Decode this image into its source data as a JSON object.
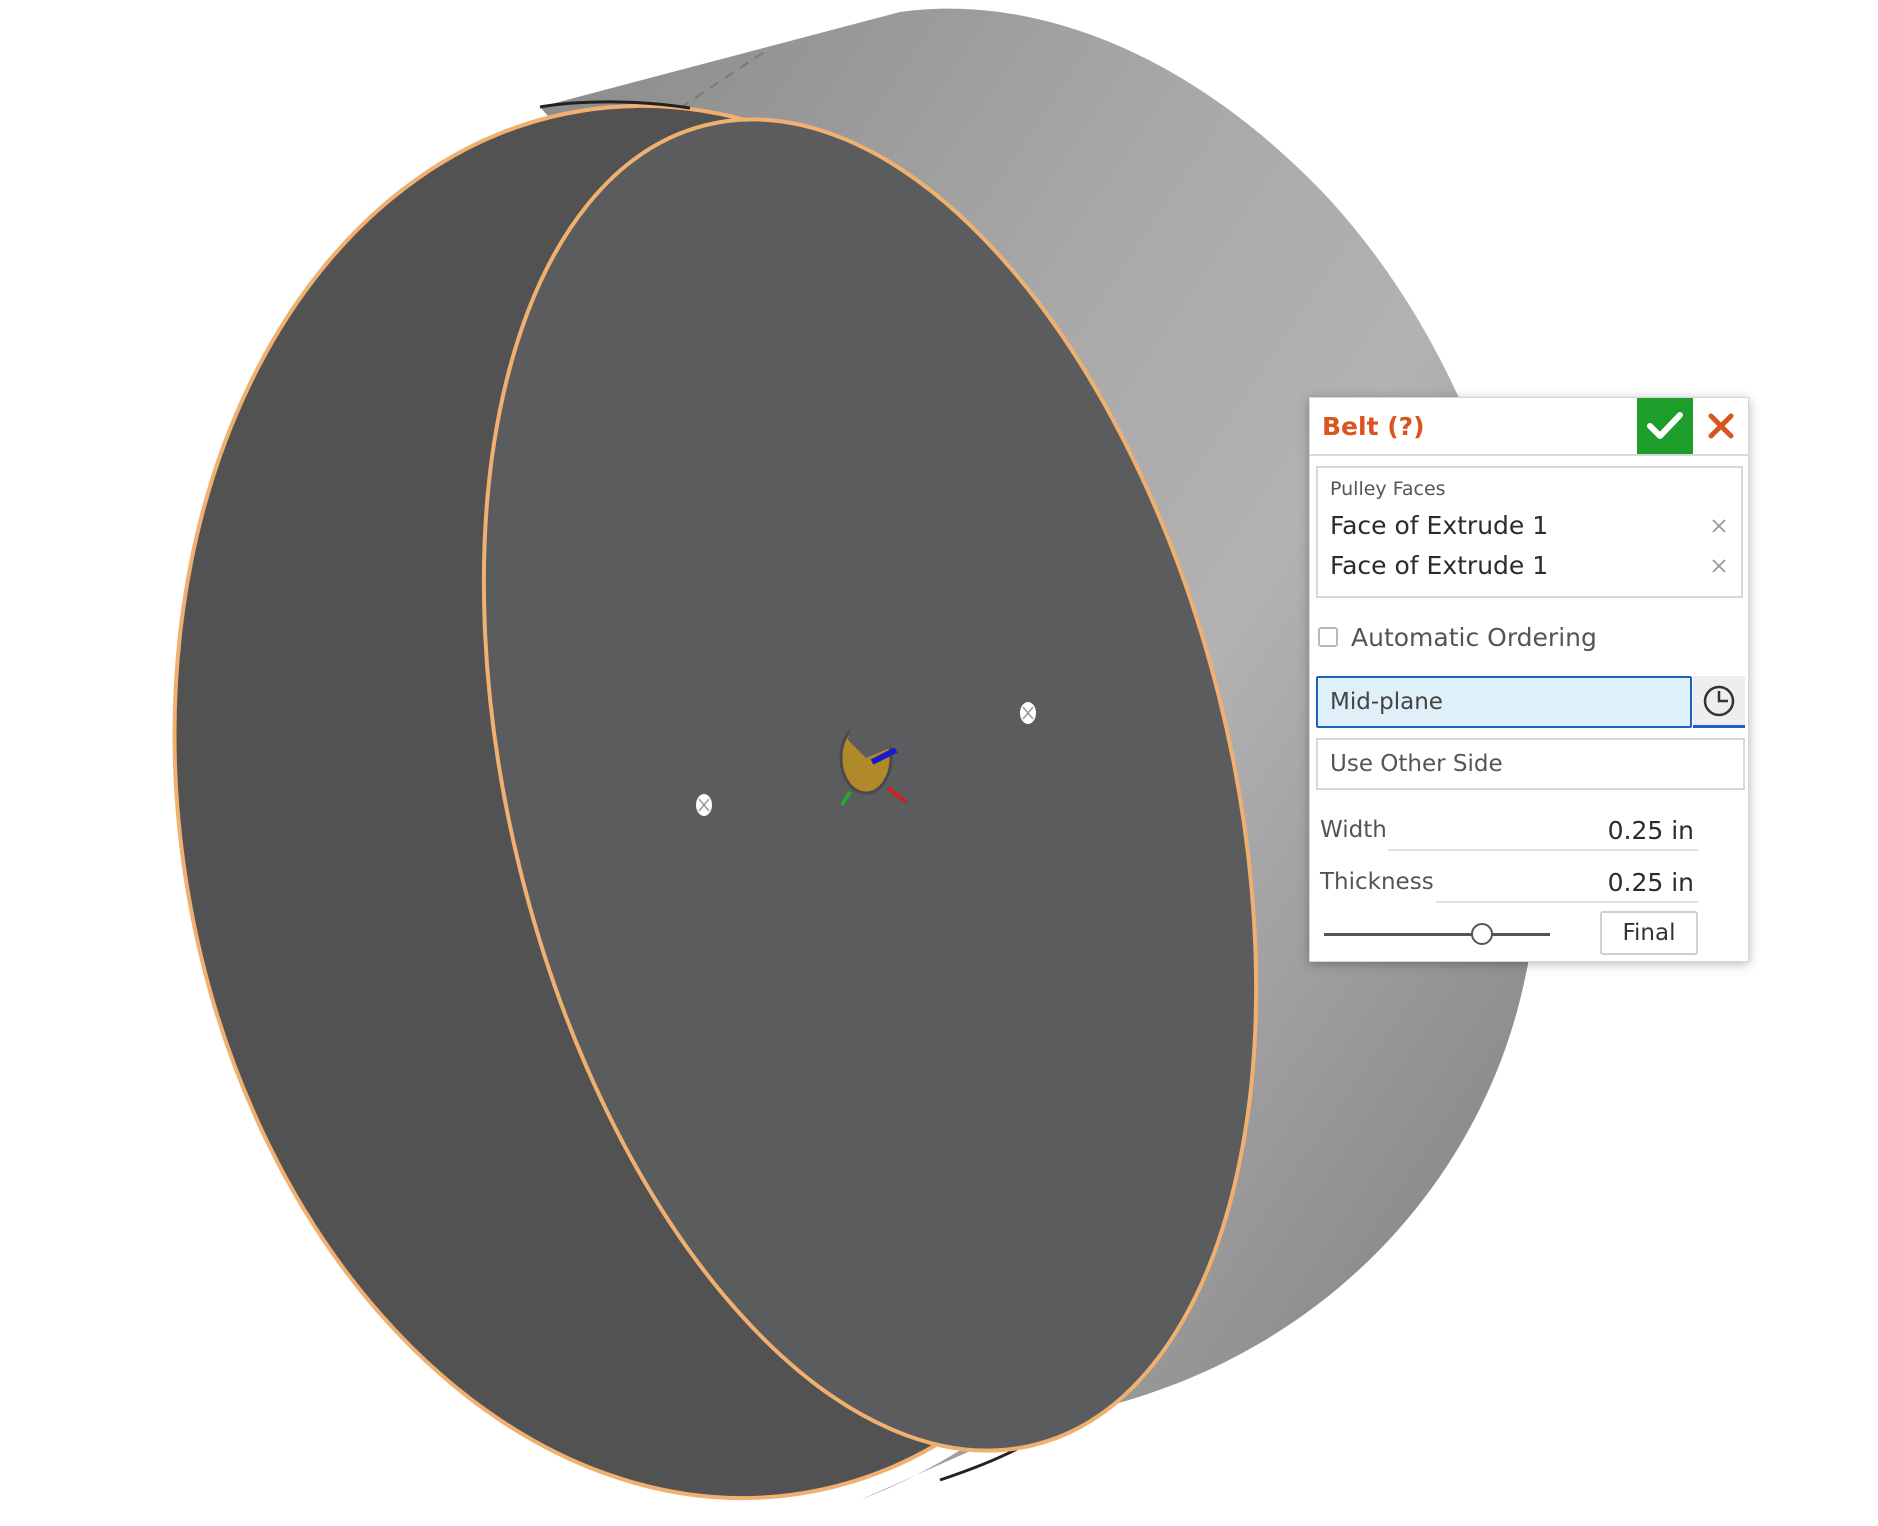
{
  "dialog": {
    "title": "Belt (?)",
    "accept_icon": "checkmark-icon",
    "cancel_icon": "close-icon",
    "pulley_faces": {
      "label": "Pulley Faces",
      "items": [
        "Face of Extrude 1",
        "Face of Extrude 1"
      ]
    },
    "automatic_ordering": {
      "label": "Automatic Ordering",
      "checked": false
    },
    "end_type": {
      "value": "Mid-plane",
      "icon": "clock-icon"
    },
    "other_side": {
      "value": "Use Other Side"
    },
    "width": {
      "label": "Width",
      "value": "0.25 in"
    },
    "thickness": {
      "label": "Thickness",
      "value": "0.25 in"
    },
    "rollback_slider": {
      "position": 0.7
    },
    "final_button": "Final"
  },
  "colors": {
    "accent_orange": "#d9541e",
    "accept_green": "#1f9d2a",
    "highlight_edge": "#f0b070",
    "selection_blue": "#1a64c8"
  }
}
